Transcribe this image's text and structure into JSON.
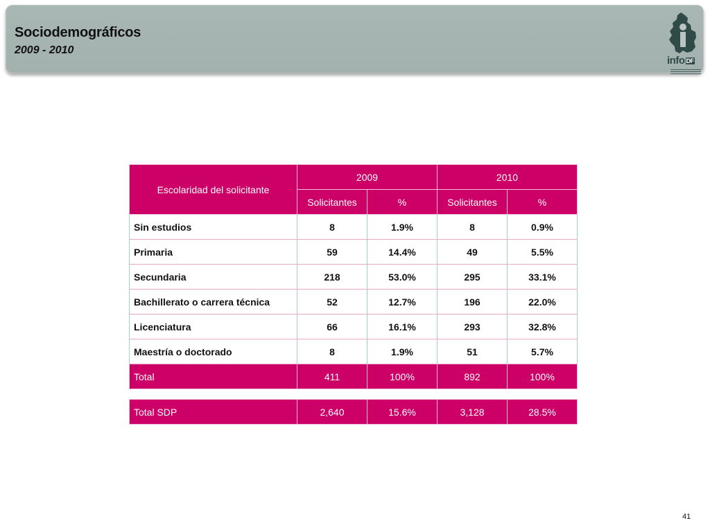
{
  "header": {
    "title": "Sociodemográficos",
    "subtitle": "2009 - 2010",
    "logo_text": "info",
    "logo_suffix": "DF"
  },
  "colors": {
    "header_bg": "#a6b4b1",
    "table_accent": "#cc0066",
    "logo": "#2f4a47"
  },
  "table": {
    "row_header": "Escolaridad del solicitante",
    "year_headers": [
      "2009",
      "2010"
    ],
    "sub_headers": [
      "Solicitantes",
      "%",
      "Solicitantes",
      "%"
    ],
    "rows": [
      {
        "label": "Sin estudios",
        "v2009": "8",
        "p2009": "1.9%",
        "v2010": "8",
        "p2010": "0.9%"
      },
      {
        "label": "Primaria",
        "v2009": "59",
        "p2009": "14.4%",
        "v2010": "49",
        "p2010": "5.5%"
      },
      {
        "label": "Secundaria",
        "v2009": "218",
        "p2009": "53.0%",
        "v2010": "295",
        "p2010": "33.1%"
      },
      {
        "label": "Bachillerato o carrera técnica",
        "v2009": "52",
        "p2009": "12.7%",
        "v2010": "196",
        "p2010": "22.0%"
      },
      {
        "label": "Licenciatura",
        "v2009": "66",
        "p2009": "16.1%",
        "v2010": "293",
        "p2010": "32.8%"
      },
      {
        "label": "Maestría o doctorado",
        "v2009": "8",
        "p2009": "1.9%",
        "v2010": "51",
        "p2010": "5.7%"
      }
    ],
    "total": {
      "label": "Total",
      "v2009": "411",
      "p2009": "100%",
      "v2010": "892",
      "p2010": "100%"
    }
  },
  "sdp_total": {
    "label": "Total SDP",
    "v2009": "2,640",
    "p2009": "15.6%",
    "v2010": "3,128",
    "p2010": "28.5%"
  },
  "footer": {
    "page_number": "41"
  }
}
